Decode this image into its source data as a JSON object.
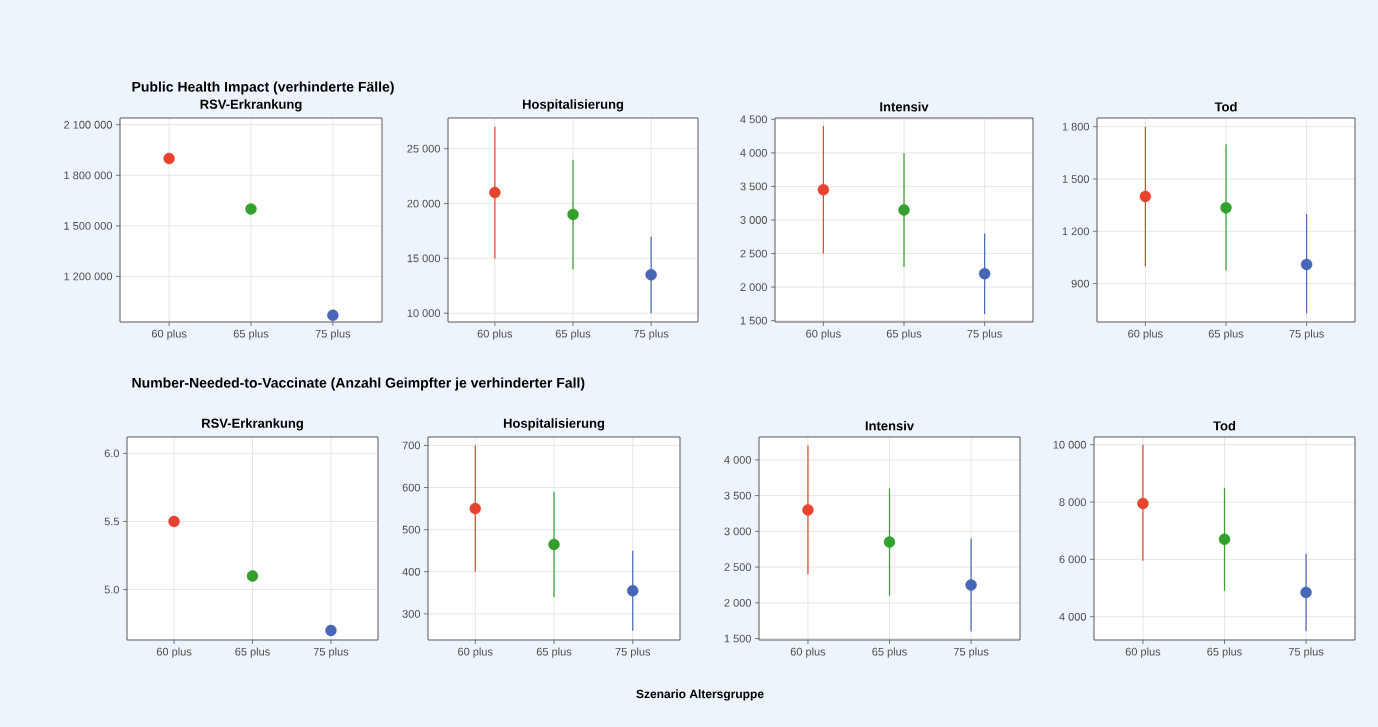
{
  "chart_data": [
    {
      "type": "scatter",
      "title": "RSV-Erkrankung",
      "annotations": [
        "Public Health Impact (verhinderte Fälle)"
      ],
      "categories": [
        "60 plus",
        "65 plus",
        "75 plus"
      ],
      "values": [
        1900000,
        1600000,
        970000
      ],
      "colors": [
        "#e8432f",
        "#33a02c",
        "#4766b8"
      ],
      "ylim": [
        930000,
        2140000
      ],
      "yticks": [
        {
          "value": 1200000,
          "label": "1 200 000"
        },
        {
          "value": 1500000,
          "label": "1 500 000"
        },
        {
          "value": 1800000,
          "label": "1 800 000"
        },
        {
          "value": 2100000,
          "label": "2 100 000"
        }
      ],
      "grid": true,
      "marker": "circle"
    },
    {
      "type": "scatter",
      "title": "Hospitalisierung",
      "categories": [
        "60 plus",
        "65 plus",
        "75 plus"
      ],
      "values": [
        21000,
        19000,
        13500
      ],
      "errors": [
        [
          15000,
          27000
        ],
        [
          14000,
          24000
        ],
        [
          10000,
          17000
        ]
      ],
      "colors": [
        "#e8432f",
        "#33a02c",
        "#4766b8"
      ],
      "ylim": [
        9200,
        27800
      ],
      "yticks": [
        {
          "value": 10000,
          "label": "10 000"
        },
        {
          "value": 15000,
          "label": "15 000"
        },
        {
          "value": 20000,
          "label": "20 000"
        },
        {
          "value": 25000,
          "label": "25 000"
        }
      ],
      "grid": true,
      "marker": "circle"
    },
    {
      "type": "scatter",
      "title": "Intensiv",
      "categories": [
        "60 plus",
        "65 plus",
        "75 plus"
      ],
      "values": [
        3450,
        3150,
        2200
      ],
      "errors": [
        [
          2500,
          4400
        ],
        [
          2300,
          4000
        ],
        [
          1600,
          2800
        ]
      ],
      "colors": [
        "#e8432f",
        "#33a02c",
        "#4766b8"
      ],
      "ylim": [
        1480,
        4520
      ],
      "yticks": [
        {
          "value": 1500,
          "label": "1 500"
        },
        {
          "value": 2000,
          "label": "2 000"
        },
        {
          "value": 2500,
          "label": "2 500"
        },
        {
          "value": 3000,
          "label": "3 000"
        },
        {
          "value": 3500,
          "label": "3 500"
        },
        {
          "value": 4000,
          "label": "4 000"
        },
        {
          "value": 4500,
          "label": "4 500"
        }
      ],
      "grid": true,
      "marker": "circle"
    },
    {
      "type": "scatter",
      "title": "Tod",
      "categories": [
        "60 plus",
        "65 plus",
        "75 plus"
      ],
      "values": [
        1400,
        1335,
        1010
      ],
      "errors": [
        [
          1000,
          1800
        ],
        [
          975,
          1700
        ],
        [
          730,
          1300
        ]
      ],
      "colors": [
        "#e8432f",
        "#33a02c",
        "#4766b8"
      ],
      "ylim": [
        680,
        1850
      ],
      "yticks": [
        900,
        {
          "value": 1200,
          "label": "1 200"
        },
        {
          "value": 1500,
          "label": "1 500"
        },
        {
          "value": 1800,
          "label": "1 800"
        }
      ],
      "grid": true,
      "marker": "circle"
    },
    {
      "type": "scatter",
      "title": "RSV-Erkrankung",
      "annotations": [
        "Number-Needed-to-Vaccinate (Anzahl Geimpfter je verhinderter Fall)"
      ],
      "categories": [
        "60 plus",
        "65 plus",
        "75 plus"
      ],
      "values": [
        5.5,
        5.1,
        4.7
      ],
      "colors": [
        "#e8432f",
        "#33a02c",
        "#4766b8"
      ],
      "ylim": [
        4.63,
        6.12
      ],
      "yticks": [
        {
          "value": 5.0,
          "label": "5.0"
        },
        {
          "value": 5.5,
          "label": "5.5"
        },
        {
          "value": 6.0,
          "label": "6.0"
        }
      ],
      "grid": true,
      "marker": "circle"
    },
    {
      "type": "scatter",
      "title": "Hospitalisierung",
      "xlabel": "Szenario Altersgruppe",
      "categories": [
        "60 plus",
        "65 plus",
        "75 plus"
      ],
      "values": [
        550,
        465,
        355
      ],
      "errors": [
        [
          400,
          700
        ],
        [
          340,
          590
        ],
        [
          260,
          450
        ]
      ],
      "colors": [
        "#e8432f",
        "#33a02c",
        "#4766b8"
      ],
      "ylim": [
        238,
        720
      ],
      "yticks": [
        300,
        400,
        500,
        600,
        700
      ],
      "grid": true,
      "marker": "circle"
    },
    {
      "type": "scatter",
      "title": "Intensiv",
      "categories": [
        "60 plus",
        "65 plus",
        "75 plus"
      ],
      "values": [
        3300,
        2850,
        2250
      ],
      "errors": [
        [
          2400,
          4200
        ],
        [
          2100,
          3600
        ],
        [
          1600,
          2900
        ]
      ],
      "colors": [
        "#e8432f",
        "#33a02c",
        "#4766b8"
      ],
      "ylim": [
        1480,
        4320
      ],
      "yticks": [
        {
          "value": 1500,
          "label": "1 500"
        },
        {
          "value": 2000,
          "label": "2 000"
        },
        {
          "value": 2500,
          "label": "2 500"
        },
        {
          "value": 3000,
          "label": "3 000"
        },
        {
          "value": 3500,
          "label": "3 500"
        },
        {
          "value": 4000,
          "label": "4 000"
        }
      ],
      "grid": true,
      "marker": "circle"
    },
    {
      "type": "scatter",
      "title": "Tod",
      "categories": [
        "60 plus",
        "65 plus",
        "75 plus"
      ],
      "values": [
        7950,
        6700,
        4850
      ],
      "errors": [
        [
          5950,
          10000
        ],
        [
          4900,
          8500
        ],
        [
          3500,
          6200
        ]
      ],
      "colors": [
        "#e8432f",
        "#33a02c",
        "#4766b8"
      ],
      "ylim": [
        3190,
        10270
      ],
      "yticks": [
        {
          "value": 4000,
          "label": "4 000"
        },
        {
          "value": 6000,
          "label": "6 000"
        },
        {
          "value": 8000,
          "label": "8 000"
        },
        {
          "value": 10000,
          "label": "10 000"
        }
      ],
      "grid": true,
      "marker": "circle"
    }
  ]
}
